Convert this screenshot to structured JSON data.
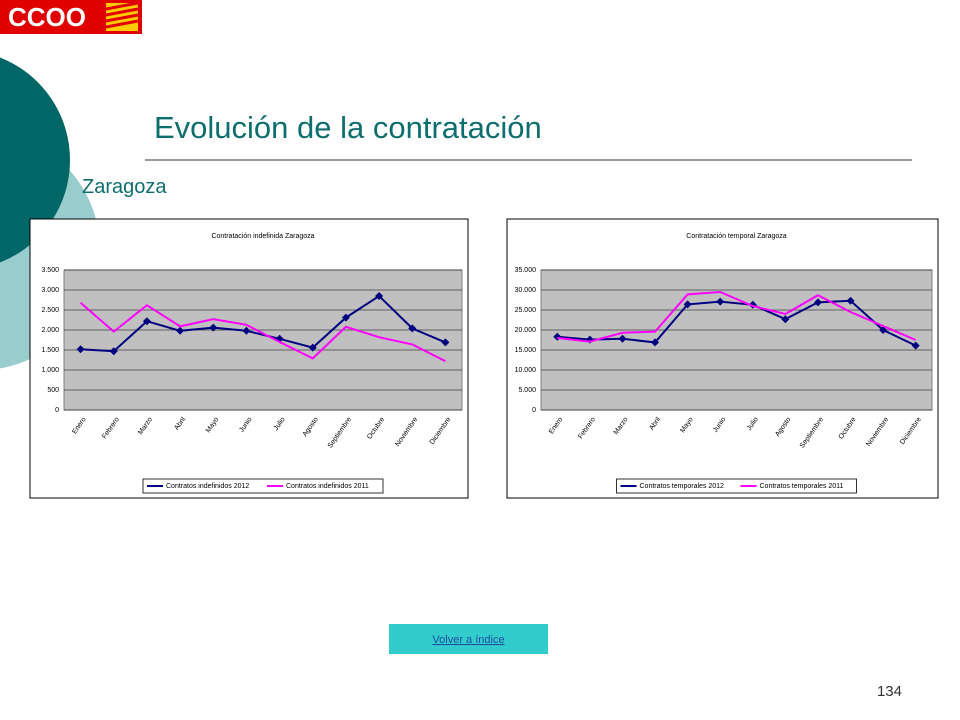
{
  "slide": {
    "logo": "CCOO",
    "title": "Evolución de la contratación",
    "subtitle": "Zaragoza",
    "button": "Volver a índice",
    "page_number": "134"
  },
  "chart_data": [
    {
      "type": "line",
      "title": "Contratación indefinida Zaragoza",
      "categories": [
        "Enero",
        "Febrero",
        "Marzo",
        "Abril",
        "Mayo",
        "Junio",
        "Julio",
        "Agosto",
        "Septiembre",
        "Octubre",
        "Noviembre",
        "Diciembre"
      ],
      "series": [
        {
          "name": "Contratos indefinidos 2012",
          "color": "#000080",
          "marker": "diamond",
          "values": [
            1520,
            1470,
            2220,
            1980,
            2060,
            1980,
            1780,
            1560,
            2310,
            2850,
            2040,
            1690
          ]
        },
        {
          "name": "Contratos indefinidos 2011",
          "color": "#ff00ff",
          "values": [
            2680,
            1960,
            2620,
            2090,
            2270,
            2130,
            1700,
            1290,
            2080,
            1820,
            1640,
            1220
          ]
        }
      ],
      "ylim": [
        0,
        3500
      ],
      "yticks": [
        0,
        {
          "value": 500,
          "label": "500"
        },
        {
          "value": 1000,
          "label": "1.000"
        },
        {
          "value": 1500,
          "label": "1.500"
        },
        {
          "value": 2000,
          "label": "2.000"
        },
        {
          "value": 2500,
          "label": "2.500"
        },
        {
          "value": 3000,
          "label": "3.000"
        },
        {
          "value": 3500,
          "label": "3.500"
        }
      ],
      "grid": true,
      "legend": "bottom"
    },
    {
      "type": "line",
      "title": "Contratación temporal Zaragoza",
      "categories": [
        "Enero",
        "Febrero",
        "Marzo",
        "Abril",
        "Mayo",
        "Junio",
        "Julio",
        "Agosto",
        "Septiembre",
        "Octubre",
        "Noviembre",
        "Diciembre"
      ],
      "series": [
        {
          "name": "Contratos temporales 2012",
          "color": "#000080",
          "marker": "diamond",
          "values": [
            18300,
            17600,
            17800,
            16900,
            26400,
            27100,
            26300,
            22700,
            26900,
            27300,
            20000,
            16100
          ]
        },
        {
          "name": "Contratos temporales 2011",
          "color": "#ff00ff",
          "values": [
            18000,
            17100,
            19300,
            19600,
            28900,
            29500,
            26000,
            24000,
            28700,
            24500,
            21000,
            17500
          ]
        }
      ],
      "ylim": [
        0,
        35000
      ],
      "yticks": [
        0,
        {
          "value": 5000,
          "label": "5.000"
        },
        {
          "value": 10000,
          "label": "10.000"
        },
        {
          "value": 15000,
          "label": "15.000"
        },
        {
          "value": 20000,
          "label": "20.000"
        },
        {
          "value": 25000,
          "label": "25.000"
        },
        {
          "value": 30000,
          "label": "30.000"
        },
        {
          "value": 35000,
          "label": "35.000"
        }
      ],
      "grid": true,
      "legend": "bottom"
    }
  ]
}
